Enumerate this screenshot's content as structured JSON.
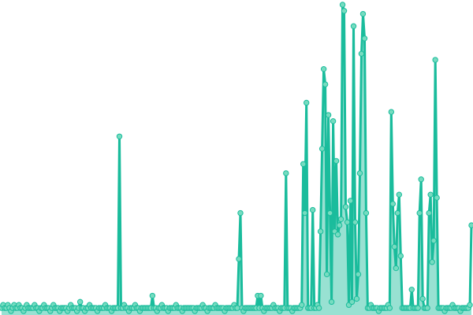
{
  "chart_data": {
    "type": "line",
    "title": "",
    "xlabel": "",
    "ylabel": "",
    "axes_visible": false,
    "grid": false,
    "legend": "none",
    "markers": true,
    "area_fill": true,
    "ylim": [
      0,
      100
    ],
    "colors": {
      "line": "#1abc9c",
      "marker_fill": "#76dcc0",
      "area": "#1abc9c"
    },
    "series": [
      {
        "values": [
          1,
          2,
          1,
          1,
          2,
          1,
          0,
          1,
          2,
          1,
          1,
          2,
          1,
          1,
          0,
          1,
          2,
          1,
          1,
          1,
          1,
          2,
          1,
          1,
          0,
          1,
          1,
          2,
          1,
          1,
          1,
          0,
          1,
          2,
          1,
          1,
          1,
          0,
          1,
          1,
          1,
          1,
          0,
          1,
          2,
          1,
          1,
          1,
          0,
          1,
          3,
          1,
          1,
          0,
          1,
          1,
          2,
          1,
          1,
          1,
          1,
          0,
          1,
          1,
          1,
          1,
          2,
          1,
          1,
          1,
          0,
          1,
          1,
          1,
          1,
          57,
          1,
          1,
          2,
          1,
          1,
          0,
          1,
          1,
          1,
          2,
          1,
          1,
          0,
          1,
          1,
          1,
          1,
          1,
          1,
          1,
          5,
          1,
          1,
          0,
          1,
          1,
          2,
          1,
          1,
          1,
          0,
          1,
          1,
          1,
          1,
          2,
          1,
          1,
          1,
          0,
          1,
          1,
          1,
          1,
          1,
          1,
          1,
          0,
          1,
          1,
          1,
          1,
          2,
          1,
          1,
          0,
          1,
          1,
          1,
          1,
          2,
          1,
          1,
          1,
          1,
          1,
          0,
          1,
          1,
          1,
          1,
          1,
          2,
          1,
          1,
          17,
          32,
          1,
          0,
          1,
          1,
          1,
          1,
          1,
          1,
          1,
          1,
          5,
          1,
          5,
          1,
          0,
          1,
          1,
          1,
          1,
          1,
          2,
          1,
          1,
          1,
          0,
          1,
          1,
          1,
          45,
          1,
          1,
          1,
          0,
          1,
          1,
          1,
          1,
          1,
          2,
          48,
          32,
          68,
          1,
          1,
          1,
          33,
          1,
          1,
          2,
          1,
          26,
          53,
          79,
          74,
          12,
          64,
          32,
          3,
          62,
          26,
          49,
          25,
          28,
          30,
          100,
          98,
          34,
          29,
          2,
          36,
          3,
          93,
          29,
          4,
          12,
          45,
          84,
          97,
          89,
          32,
          1,
          1,
          2,
          1,
          1,
          1,
          1,
          0,
          1,
          1,
          1,
          1,
          1,
          2,
          1,
          65,
          35,
          21,
          14,
          32,
          38,
          18,
          1,
          1,
          1,
          1,
          1,
          1,
          7,
          1,
          1,
          1,
          1,
          32,
          43,
          4,
          1,
          1,
          1,
          32,
          38,
          16,
          23,
          82,
          37,
          1,
          1,
          1,
          1,
          0,
          1,
          1,
          1,
          1,
          2,
          1,
          1,
          1,
          1,
          0,
          1,
          1,
          1,
          1,
          1,
          2,
          28
        ]
      }
    ]
  }
}
